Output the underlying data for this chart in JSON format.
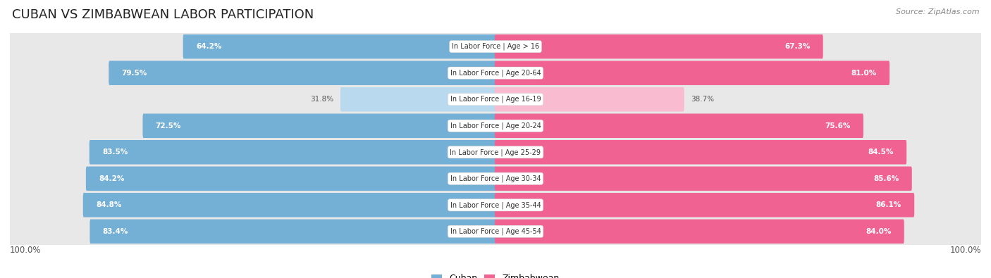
{
  "title": "CUBAN VS ZIMBABWEAN LABOR PARTICIPATION",
  "source": "Source: ZipAtlas.com",
  "categories": [
    "In Labor Force | Age > 16",
    "In Labor Force | Age 20-64",
    "In Labor Force | Age 16-19",
    "In Labor Force | Age 20-24",
    "In Labor Force | Age 25-29",
    "In Labor Force | Age 30-34",
    "In Labor Force | Age 35-44",
    "In Labor Force | Age 45-54"
  ],
  "cuban": [
    64.2,
    79.5,
    31.8,
    72.5,
    83.5,
    84.2,
    84.8,
    83.4
  ],
  "zimbabwean": [
    67.3,
    81.0,
    38.7,
    75.6,
    84.5,
    85.6,
    86.1,
    84.0
  ],
  "cuban_color": "#74afd5",
  "cuban_color_light": "#b8d9ee",
  "zimbabwean_color": "#f06292",
  "zimbabwean_color_light": "#f8bbd0",
  "row_bg_color": "#e8e8e8",
  "max_val": 100.0,
  "bar_height": 0.62,
  "legend_cuban": "Cuban",
  "legend_zimbabwean": "Zimbabwean",
  "title_fontsize": 13,
  "source_fontsize": 8,
  "label_fontsize": 7.5,
  "cat_fontsize": 7.0,
  "legend_fontsize": 9
}
